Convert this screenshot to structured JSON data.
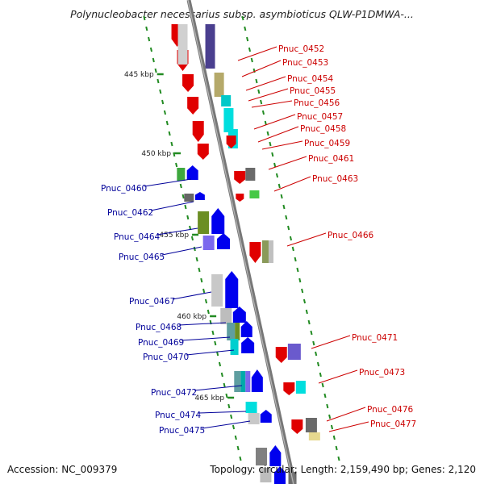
{
  "title": "Polynucleobacter necessarius subsp. asymbioticus QLW-P1DMWA-...",
  "footer": {
    "accession": "Accession: NC_009379",
    "summary": "Topology: circular; Length: 2,159,490 bp; Genes: 2,120"
  },
  "colors": {
    "right_label": "#cc0000",
    "left_label": "#000099",
    "backbone": "#8a8a8a",
    "tick": "#228b22"
  },
  "kbp_labels": [
    "445 kbp",
    "450 kbp",
    "455 kbp",
    "460 kbp",
    "465 kbp"
  ],
  "right_labels": [
    "Pnuc_0452",
    "Pnuc_0453",
    "Pnuc_0454",
    "Pnuc_0455",
    "Pnuc_0456",
    "Pnuc_0457",
    "Pnuc_0458",
    "Pnuc_0459",
    "Pnuc_0461",
    "Pnuc_0463",
    "Pnuc_0466",
    "Pnuc_0471",
    "Pnuc_0473",
    "Pnuc_0476",
    "Pnuc_0477"
  ],
  "left_labels": [
    "Pnuc_0460",
    "Pnuc_0462",
    "Pnuc_0464",
    "Pnuc_0465",
    "Pnuc_0467",
    "Pnuc_0468",
    "Pnuc_0469",
    "Pnuc_0470",
    "Pnuc_0472",
    "Pnuc_0474",
    "Pnuc_0475"
  ]
}
